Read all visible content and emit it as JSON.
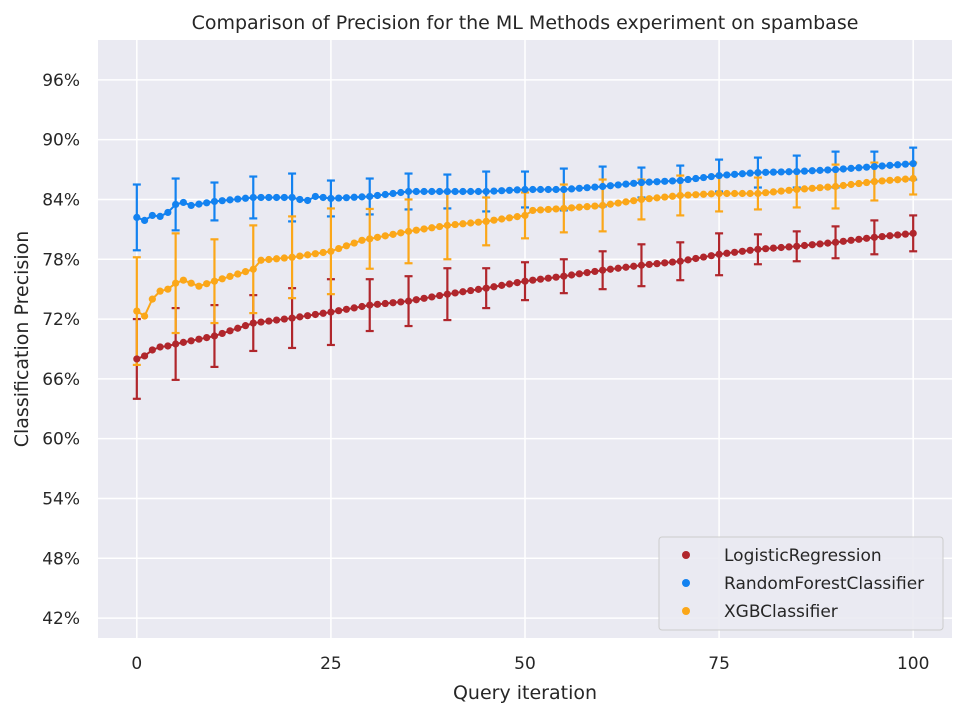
{
  "chart_data": {
    "type": "scatter",
    "title": "Comparison of Precision for the ML Methods experiment on spambase",
    "xlabel": "Query iteration",
    "ylabel": "Classification Precision",
    "xlim": [
      -5,
      105
    ],
    "ylim": [
      40,
      100
    ],
    "x_ticks": [
      0,
      25,
      50,
      75,
      100
    ],
    "x_tick_labels": [
      "0",
      "25",
      "50",
      "75",
      "100"
    ],
    "y_ticks": [
      42,
      48,
      54,
      60,
      66,
      72,
      78,
      84,
      90,
      96
    ],
    "y_tick_labels": [
      "42%",
      "48%",
      "54%",
      "60%",
      "66%",
      "72%",
      "78%",
      "84%",
      "90%",
      "96%"
    ],
    "grid": true,
    "legend_position": "bottom-right",
    "error_bar_every": 5,
    "series": [
      {
        "name": "LogisticRegression",
        "color": "#b0262c",
        "anchors": [
          [
            0,
            68.0
          ],
          [
            1,
            68.3
          ],
          [
            2,
            68.9
          ],
          [
            3,
            69.2
          ],
          [
            4,
            69.3
          ],
          [
            5,
            69.5
          ],
          [
            10,
            70.3
          ],
          [
            15,
            71.6
          ],
          [
            20,
            72.1
          ],
          [
            25,
            72.7
          ],
          [
            30,
            73.4
          ],
          [
            35,
            73.8
          ],
          [
            40,
            74.5
          ],
          [
            45,
            75.1
          ],
          [
            50,
            75.8
          ],
          [
            55,
            76.3
          ],
          [
            60,
            76.9
          ],
          [
            65,
            77.4
          ],
          [
            70,
            77.8
          ],
          [
            75,
            78.5
          ],
          [
            80,
            79.0
          ],
          [
            85,
            79.3
          ],
          [
            90,
            79.7
          ],
          [
            95,
            80.2
          ],
          [
            100,
            80.6
          ]
        ],
        "err": [
          [
            0,
            4.0
          ],
          [
            5,
            3.6
          ],
          [
            10,
            3.1
          ],
          [
            15,
            2.8
          ],
          [
            20,
            3.0
          ],
          [
            25,
            3.3
          ],
          [
            30,
            2.6
          ],
          [
            35,
            2.5
          ],
          [
            40,
            2.6
          ],
          [
            45,
            2.0
          ],
          [
            50,
            1.9
          ],
          [
            55,
            1.7
          ],
          [
            60,
            1.9
          ],
          [
            65,
            2.1
          ],
          [
            70,
            1.9
          ],
          [
            75,
            2.1
          ],
          [
            80,
            1.5
          ],
          [
            85,
            1.5
          ],
          [
            90,
            1.6
          ],
          [
            95,
            1.7
          ],
          [
            100,
            1.8
          ]
        ]
      },
      {
        "name": "RandomForestClassifier",
        "color": "#1382f0",
        "anchors": [
          [
            0,
            82.2
          ],
          [
            1,
            81.9
          ],
          [
            2,
            82.4
          ],
          [
            3,
            82.3
          ],
          [
            4,
            82.7
          ],
          [
            5,
            83.5
          ],
          [
            6,
            83.7
          ],
          [
            7,
            83.4
          ],
          [
            10,
            83.8
          ],
          [
            15,
            84.2
          ],
          [
            20,
            84.2
          ],
          [
            21,
            84.0
          ],
          [
            22,
            83.9
          ],
          [
            23,
            84.3
          ],
          [
            25,
            84.1
          ],
          [
            30,
            84.3
          ],
          [
            35,
            84.8
          ],
          [
            40,
            84.8
          ],
          [
            45,
            84.8
          ],
          [
            50,
            85.0
          ],
          [
            55,
            85.0
          ],
          [
            60,
            85.3
          ],
          [
            65,
            85.7
          ],
          [
            70,
            85.9
          ],
          [
            75,
            86.4
          ],
          [
            80,
            86.7
          ],
          [
            85,
            86.8
          ],
          [
            90,
            87.0
          ],
          [
            95,
            87.3
          ],
          [
            100,
            87.6
          ]
        ],
        "err": [
          [
            0,
            3.3
          ],
          [
            5,
            2.6
          ],
          [
            10,
            1.9
          ],
          [
            15,
            2.1
          ],
          [
            20,
            2.4
          ],
          [
            25,
            1.8
          ],
          [
            30,
            1.8
          ],
          [
            35,
            1.8
          ],
          [
            40,
            1.7
          ],
          [
            45,
            2.0
          ],
          [
            50,
            1.8
          ],
          [
            55,
            2.1
          ],
          [
            60,
            2.0
          ],
          [
            65,
            1.5
          ],
          [
            70,
            1.5
          ],
          [
            75,
            1.6
          ],
          [
            80,
            1.5
          ],
          [
            85,
            1.6
          ],
          [
            90,
            1.8
          ],
          [
            95,
            1.5
          ],
          [
            100,
            1.6
          ]
        ]
      },
      {
        "name": "XGBClassifier",
        "color": "#fba719",
        "anchors": [
          [
            0,
            72.8
          ],
          [
            1,
            72.3
          ],
          [
            2,
            74.0
          ],
          [
            3,
            74.8
          ],
          [
            4,
            75.0
          ],
          [
            5,
            75.6
          ],
          [
            6,
            75.9
          ],
          [
            7,
            75.6
          ],
          [
            8,
            75.3
          ],
          [
            10,
            75.8
          ],
          [
            15,
            77.0
          ],
          [
            16,
            77.9
          ],
          [
            20,
            78.2
          ],
          [
            25,
            78.8
          ],
          [
            29,
            79.9
          ],
          [
            35,
            80.8
          ],
          [
            40,
            81.4
          ],
          [
            45,
            81.8
          ],
          [
            50,
            82.4
          ],
          [
            51,
            82.9
          ],
          [
            55,
            83.1
          ],
          [
            60,
            83.4
          ],
          [
            65,
            84.0
          ],
          [
            70,
            84.4
          ],
          [
            75,
            84.6
          ],
          [
            80,
            84.6
          ],
          [
            85,
            85.0
          ],
          [
            90,
            85.3
          ],
          [
            95,
            85.8
          ],
          [
            100,
            86.1
          ]
        ],
        "err": [
          [
            0,
            5.4
          ],
          [
            5,
            5.0
          ],
          [
            10,
            4.2
          ],
          [
            15,
            4.4
          ],
          [
            20,
            4.1
          ],
          [
            25,
            4.3
          ],
          [
            30,
            3.0
          ],
          [
            35,
            3.2
          ],
          [
            40,
            3.4
          ],
          [
            45,
            2.4
          ],
          [
            50,
            2.3
          ],
          [
            55,
            2.4
          ],
          [
            60,
            2.6
          ],
          [
            65,
            2.0
          ],
          [
            70,
            2.0
          ],
          [
            75,
            1.8
          ],
          [
            80,
            1.6
          ],
          [
            85,
            1.8
          ],
          [
            90,
            2.2
          ],
          [
            95,
            1.9
          ],
          [
            100,
            1.6
          ]
        ]
      }
    ]
  }
}
